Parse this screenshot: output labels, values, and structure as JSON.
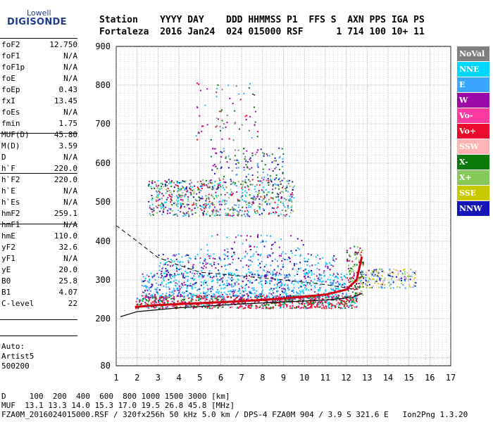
{
  "logo": {
    "brand": "Lowell",
    "product": "DIGISONDE"
  },
  "header": {
    "line1": "Station    YYYY DAY    DDD HHMMSS P1  FFS S  AXN PPS IGA PS",
    "line2": "Fortaleza  2016 Jan24  024 015000 RSF      1 714 100 10+ 11"
  },
  "params": [
    {
      "name": "foF2",
      "value": "12.750"
    },
    {
      "name": "foF1",
      "value": "N/A"
    },
    {
      "name": "foF1p",
      "value": "N/A"
    },
    {
      "name": "foE",
      "value": "N/A"
    },
    {
      "name": "foEp",
      "value": "0.43"
    },
    {
      "name": "fxI",
      "value": "13.45"
    },
    {
      "name": "foEs",
      "value": "N/A"
    },
    {
      "name": "fmin",
      "value": "1.75"
    },
    {
      "name": "MUF(D)",
      "value": "45.80"
    },
    {
      "name": "M(D)",
      "value": "3.59"
    },
    {
      "name": "D",
      "value": "N/A"
    },
    {
      "name": "h`F",
      "value": "220.0"
    },
    {
      "name": "h`F2",
      "value": "220.0"
    },
    {
      "name": "h`E",
      "value": "N/A"
    },
    {
      "name": "h`Es",
      "value": "N/A"
    },
    {
      "name": "hmF2",
      "value": "259.1"
    },
    {
      "name": "hmF1",
      "value": "N/A"
    },
    {
      "name": "hmE",
      "value": "110.0"
    },
    {
      "name": "yF2",
      "value": "32.6"
    },
    {
      "name": "yF1",
      "value": "N/A"
    },
    {
      "name": "yE",
      "value": "20.0"
    },
    {
      "name": "B0",
      "value": "25.8"
    },
    {
      "name": "B1",
      "value": "4.07"
    },
    {
      "name": "C-level",
      "value": "22"
    }
  ],
  "autoscaling": {
    "label": "Auto:",
    "program": "Artist5",
    "version": "500200"
  },
  "legend": [
    {
      "name": "NoVal",
      "color": "#808080"
    },
    {
      "name": "NNE",
      "color": "#00d8ff"
    },
    {
      "name": "E",
      "color": "#3aa6ff"
    },
    {
      "name": "W",
      "color": "#9b0aa6"
    },
    {
      "name": "Vo-",
      "color": "#ff3aa0"
    },
    {
      "name": "Vo+",
      "color": "#ee0a2a"
    },
    {
      "name": "SSW",
      "color": "#ffb4b4"
    },
    {
      "name": "X-",
      "color": "#0b7a0b"
    },
    {
      "name": "X+",
      "color": "#86c95a"
    },
    {
      "name": "SSE",
      "color": "#c8c800"
    },
    {
      "name": "NNW",
      "color": "#1414b8"
    }
  ],
  "footer": {
    "line1": "D     100  200  400  600  800 1000 1500 3000 [km]",
    "line2": "MUF  13.1 13.3 14.0 15.3 17.0 19.5 26.8 45.8 [MHz]",
    "line3": "FZA0M_2016024015000.RSF / 320fx256h 50 kHz 5.0 km / DPS-4 FZA0M 904 / 3.9 S 321.6 E   Ion2Png 1.3.20"
  },
  "chart_data": {
    "type": "scatter",
    "xlabel": "",
    "ylabel": "",
    "xlim": [
      1,
      17
    ],
    "ylim": [
      80,
      900
    ],
    "x_ticks": [
      "1",
      "2",
      "3",
      "4",
      "5",
      "6",
      "7",
      "8",
      "9",
      "10",
      "11",
      "12",
      "13",
      "14",
      "15",
      "16",
      "17"
    ],
    "y_ticks": [
      "80",
      "200",
      "300",
      "400",
      "500",
      "600",
      "700",
      "800",
      "900"
    ],
    "y_tick_values": [
      80,
      200,
      300,
      400,
      500,
      600,
      700,
      800,
      900
    ],
    "grid": true,
    "series": [
      {
        "name": "ionogram-trace",
        "points": [
          [
            1.9,
            230
          ],
          [
            3,
            235
          ],
          [
            5,
            240
          ],
          [
            7,
            245
          ],
          [
            9,
            252
          ],
          [
            11,
            262
          ],
          [
            12,
            275
          ],
          [
            12.5,
            300
          ],
          [
            12.75,
            360
          ]
        ]
      },
      {
        "name": "profile-lower",
        "points": [
          [
            1.2,
            205
          ],
          [
            2,
            218
          ],
          [
            4,
            228
          ],
          [
            7,
            238
          ],
          [
            9,
            243
          ],
          [
            11,
            248
          ],
          [
            12.3,
            255
          ],
          [
            12.75,
            265
          ]
        ]
      },
      {
        "name": "profile-upper",
        "points": [
          [
            1,
            440
          ],
          [
            2,
            400
          ],
          [
            3,
            358
          ],
          [
            4,
            338
          ],
          [
            5,
            320
          ],
          [
            7,
            310
          ],
          [
            9,
            300
          ],
          [
            11,
            288
          ],
          [
            12.5,
            275
          ]
        ]
      }
    ]
  }
}
